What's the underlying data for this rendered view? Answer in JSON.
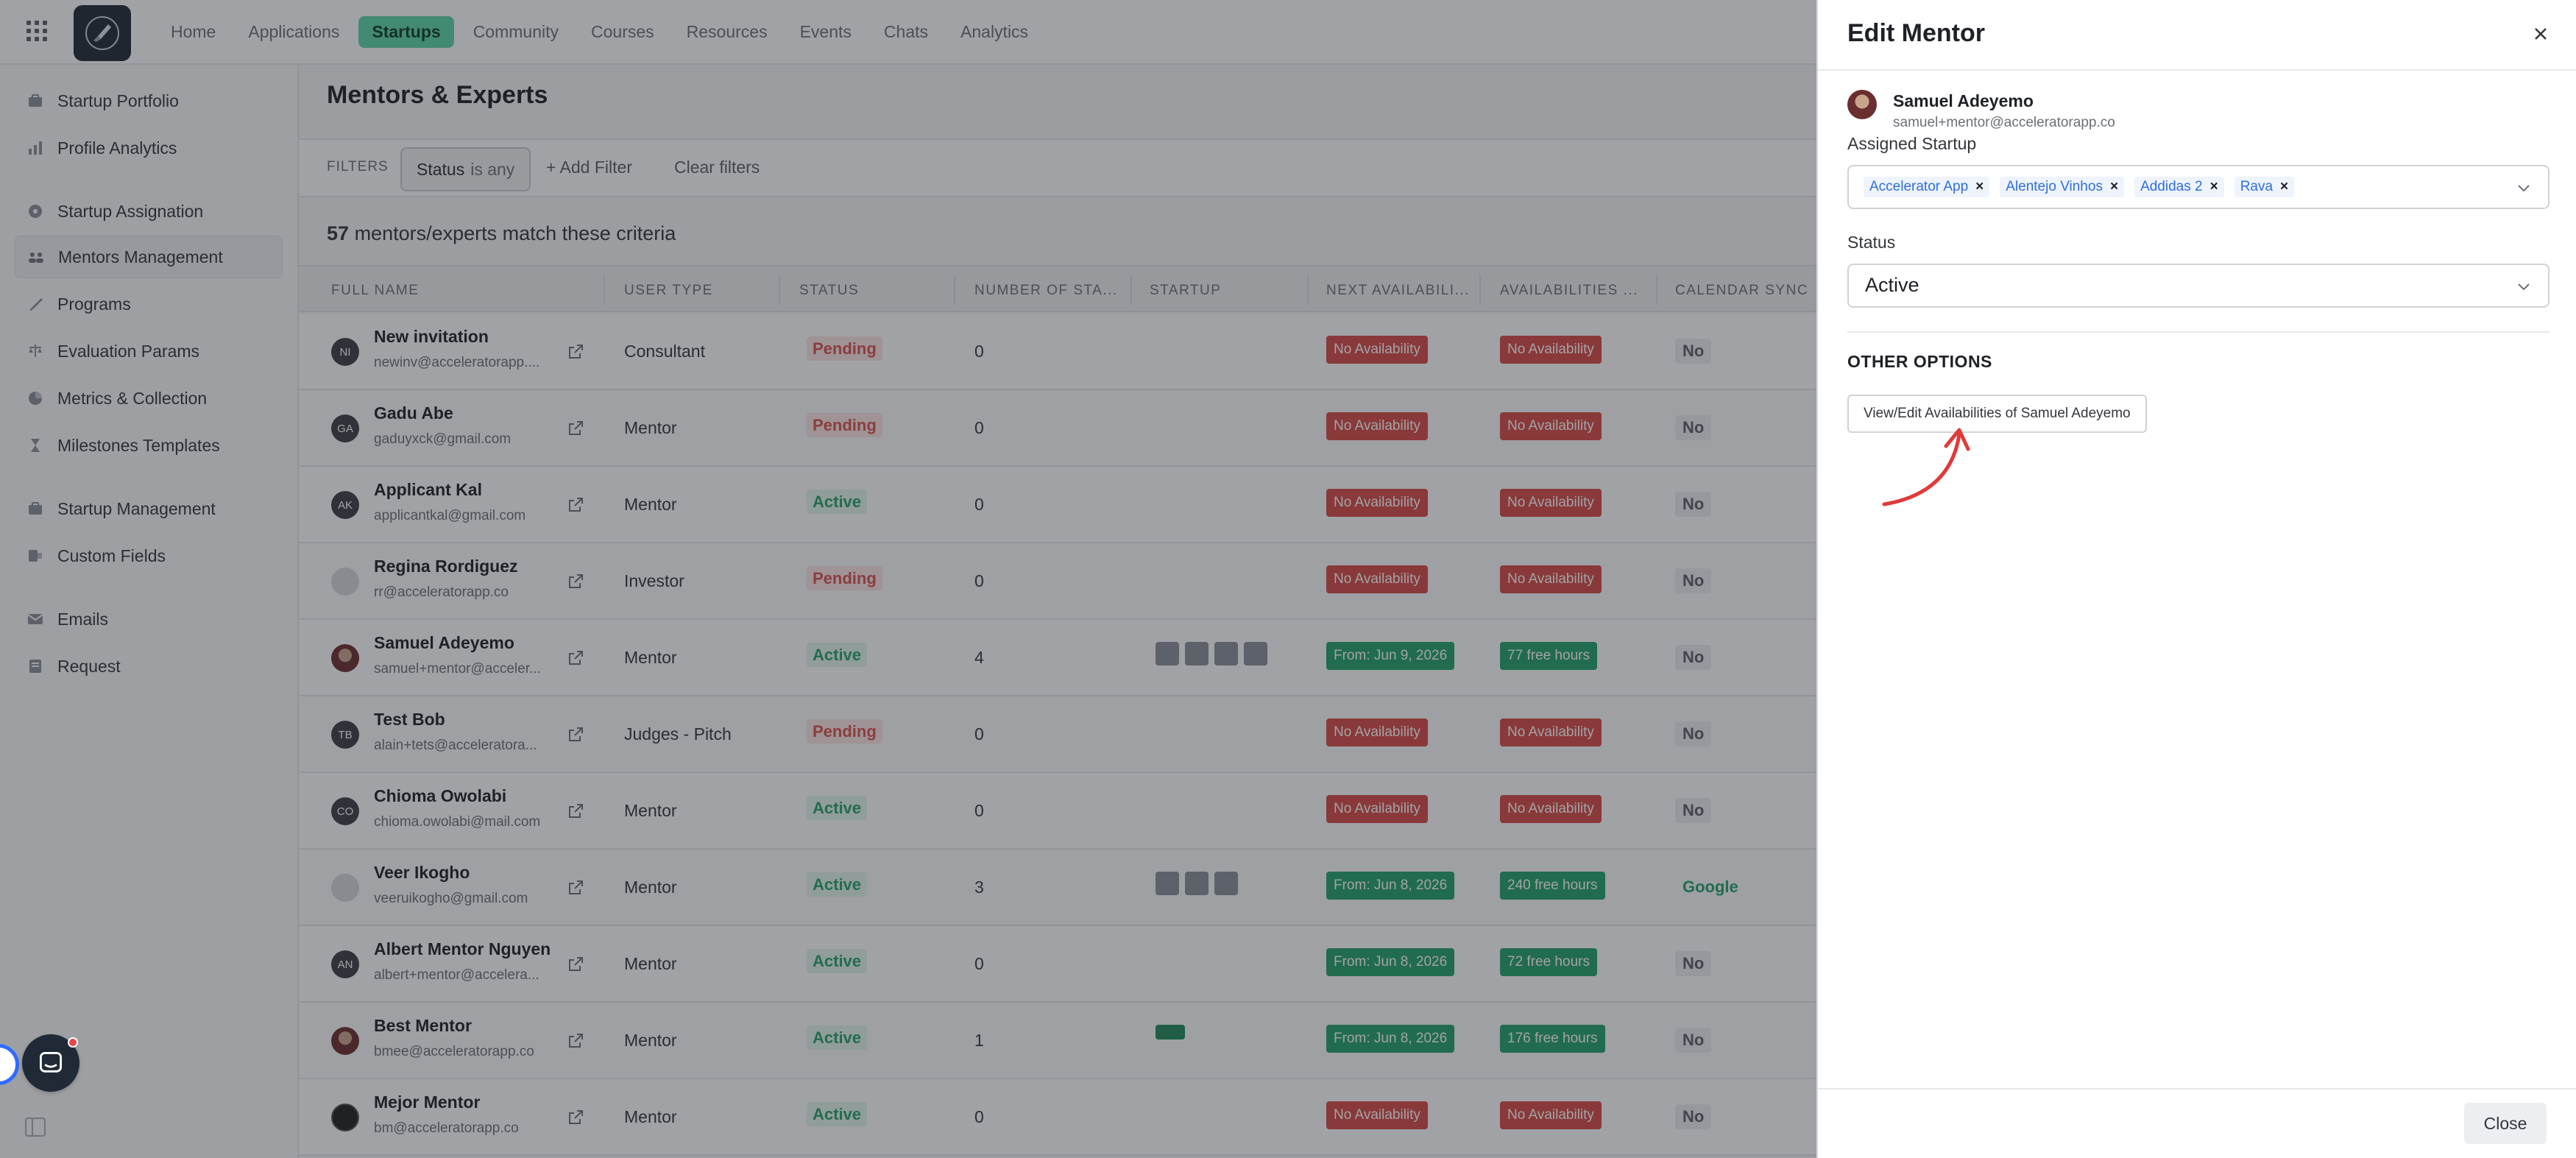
{
  "nav": {
    "items": [
      "Home",
      "Applications",
      "Startups",
      "Community",
      "Courses",
      "Resources",
      "Events",
      "Chats",
      "Analytics"
    ],
    "active": "Startups"
  },
  "sidebar": {
    "items": [
      {
        "label": "Startup Portfolio",
        "icon": "portfolio-icon"
      },
      {
        "label": "Profile Analytics",
        "icon": "bar-chart-icon"
      },
      {
        "label": "Startup Assignation",
        "icon": "assign-icon"
      },
      {
        "label": "Mentors Management",
        "icon": "users-icon"
      },
      {
        "label": "Programs",
        "icon": "rocket-icon"
      },
      {
        "label": "Evaluation Params",
        "icon": "scale-icon"
      },
      {
        "label": "Metrics & Collection",
        "icon": "pie-icon"
      },
      {
        "label": "Milestones Templates",
        "icon": "hourglass-icon"
      },
      {
        "label": "Startup Management",
        "icon": "portfolio-icon"
      },
      {
        "label": "Custom Fields",
        "icon": "fields-icon"
      },
      {
        "label": "Emails",
        "icon": "mail-icon"
      },
      {
        "label": "Request",
        "icon": "request-icon"
      }
    ]
  },
  "main": {
    "title": "Mentors & Experts",
    "filters_label": "FILTERS",
    "filter_chip": {
      "field": "Status",
      "op": "is any"
    },
    "add_filter": "+ Add Filter",
    "clear_filters": "Clear filters",
    "match_count": "57",
    "match_text": "mentors/experts match these criteria",
    "columns": [
      "FULL NAME",
      "USER TYPE",
      "STATUS",
      "NUMBER OF STA...",
      "STARTUP",
      "NEXT AVAILABILI...",
      "AVAILABILITIES ...",
      "CALENDAR SYNC"
    ],
    "rows": [
      {
        "initials": "NI",
        "name": "New invitation",
        "email": "newinv@acceleratorapp....",
        "type": "Consultant",
        "status": "Pending",
        "num": "0",
        "next": "No Availability",
        "avail": "No Availability",
        "sync": "No"
      },
      {
        "initials": "GA",
        "name": "Gadu Abe",
        "email": "gaduyxck@gmail.com",
        "type": "Mentor",
        "status": "Pending",
        "num": "0",
        "next": "No Availability",
        "avail": "No Availability",
        "sync": "No"
      },
      {
        "initials": "AK",
        "name": "Applicant Kal",
        "email": "applicantkal@gmail.com",
        "type": "Mentor",
        "status": "Active",
        "num": "0",
        "next": "No Availability",
        "avail": "No Availability",
        "sync": "No"
      },
      {
        "initials": "",
        "name": "Regina Rordiguez",
        "email": "rr@acceleratorapp.co",
        "type": "Investor",
        "status": "Pending",
        "num": "0",
        "next": "No Availability",
        "avail": "No Availability",
        "sync": "No"
      },
      {
        "initials": "",
        "name": "Samuel Adeyemo",
        "email": "samuel+mentor@acceler...",
        "type": "Mentor",
        "status": "Active",
        "num": "4",
        "next": "From: Jun 9, 2026",
        "avail": "77 free hours",
        "sync": "No"
      },
      {
        "initials": "TB",
        "name": "Test Bob",
        "email": "alain+tets@acceleratora...",
        "type": "Judges - Pitch",
        "status": "Pending",
        "num": "0",
        "next": "No Availability",
        "avail": "No Availability",
        "sync": "No"
      },
      {
        "initials": "CO",
        "name": "Chioma Owolabi",
        "email": "chioma.owolabi@mail.com",
        "type": "Mentor",
        "status": "Active",
        "num": "0",
        "next": "No Availability",
        "avail": "No Availability",
        "sync": "No"
      },
      {
        "initials": "",
        "name": "Veer Ikogho",
        "email": "veeruikogho@gmail.com",
        "type": "Mentor",
        "status": "Active",
        "num": "3",
        "next": "From: Jun 8, 2026",
        "avail": "240 free hours",
        "sync": "Google"
      },
      {
        "initials": "AN",
        "name": "Albert Mentor Nguyen",
        "email": "albert+mentor@accelera...",
        "type": "Mentor",
        "status": "Active",
        "num": "0",
        "next": "From: Jun 8, 2026",
        "avail": "72 free hours",
        "sync": "No"
      },
      {
        "initials": "",
        "name": "Best Mentor",
        "email": "bmee@acceleratorapp.co",
        "type": "Mentor",
        "status": "Active",
        "num": "1",
        "next": "From: Jun 8, 2026",
        "avail": "176 free hours",
        "sync": "No"
      },
      {
        "initials": "",
        "name": "Mejor Mentor",
        "email": "bm@acceleratorapp.co",
        "type": "Mentor",
        "status": "Active",
        "num": "0",
        "next": "No Availability",
        "avail": "No Availability",
        "sync": "No"
      }
    ]
  },
  "drawer": {
    "title": "Edit Mentor",
    "mentor_name": "Samuel Adeyemo",
    "mentor_email": "samuel+mentor@acceleratorapp.co",
    "assigned_label": "Assigned Startup",
    "assigned": [
      "Accelerator App",
      "Alentejo Vinhos",
      "Addidas 2",
      "Rava"
    ],
    "status_label": "Status",
    "status_value": "Active",
    "other_options": "OTHER OPTIONS",
    "view_button": "View/Edit Availabilities of Samuel Adeyemo",
    "close_button": "Close"
  },
  "colors": {
    "accent": "#5ed6a8",
    "pending": "#d9544f",
    "active": "#29a36a",
    "badge_red": "#d64b48",
    "badge_green": "#24a36a",
    "annotation_arrow": "#e03a3a"
  }
}
